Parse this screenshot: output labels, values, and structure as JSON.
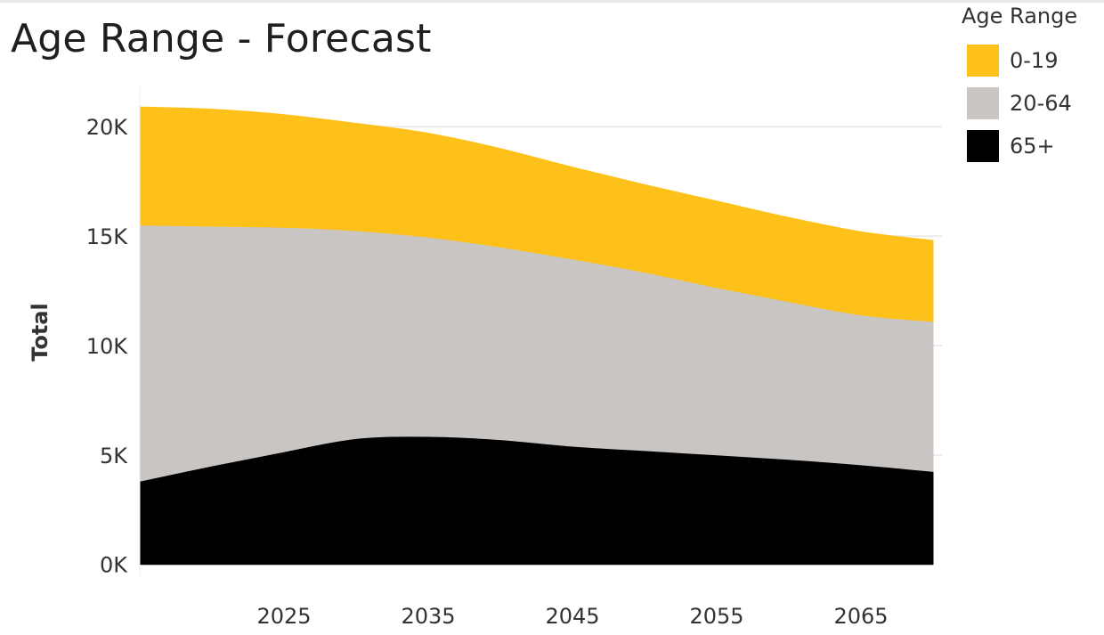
{
  "chart_data": {
    "type": "area",
    "stacked": true,
    "title": "Age Range - Forecast",
    "xlabel": "",
    "ylabel": "Total",
    "x": [
      2015,
      2020,
      2025,
      2030,
      2035,
      2040,
      2045,
      2050,
      2055,
      2060,
      2065,
      2070
    ],
    "xticks": [
      "2025",
      "2035",
      "2045",
      "2055",
      "2065"
    ],
    "xtick_values": [
      2025,
      2035,
      2045,
      2055,
      2065
    ],
    "xlim": [
      2015,
      2070
    ],
    "ylim": [
      -500,
      21800
    ],
    "yticks": [
      "0K",
      "5K",
      "10K",
      "15K",
      "20K"
    ],
    "ytick_values": [
      0,
      5000,
      10000,
      15000,
      20000
    ],
    "grid": "horizontal",
    "legend": {
      "title": "Age Range",
      "position": "top-right"
    },
    "series": [
      {
        "name": "65+",
        "color": "#000000",
        "values": [
          3800,
          4500,
          5150,
          5750,
          5850,
          5700,
          5400,
          5200,
          5000,
          4800,
          4550,
          4250
        ]
      },
      {
        "name": "20-64",
        "color": "#c9c5c3",
        "values": [
          11700,
          10950,
          10250,
          9500,
          9100,
          8800,
          8550,
          8150,
          7650,
          7200,
          6850,
          6850
        ]
      },
      {
        "name": "0-19",
        "color": "#fdc11a",
        "values": [
          5400,
          5350,
          5150,
          4900,
          4750,
          4500,
          4200,
          4000,
          3950,
          3850,
          3800,
          3700
        ]
      }
    ]
  },
  "legend_items": [
    {
      "label": "0-19",
      "color": "#fdc11a"
    },
    {
      "label": "20-64",
      "color": "#c9c5c3"
    },
    {
      "label": "65+",
      "color": "#000000"
    }
  ]
}
